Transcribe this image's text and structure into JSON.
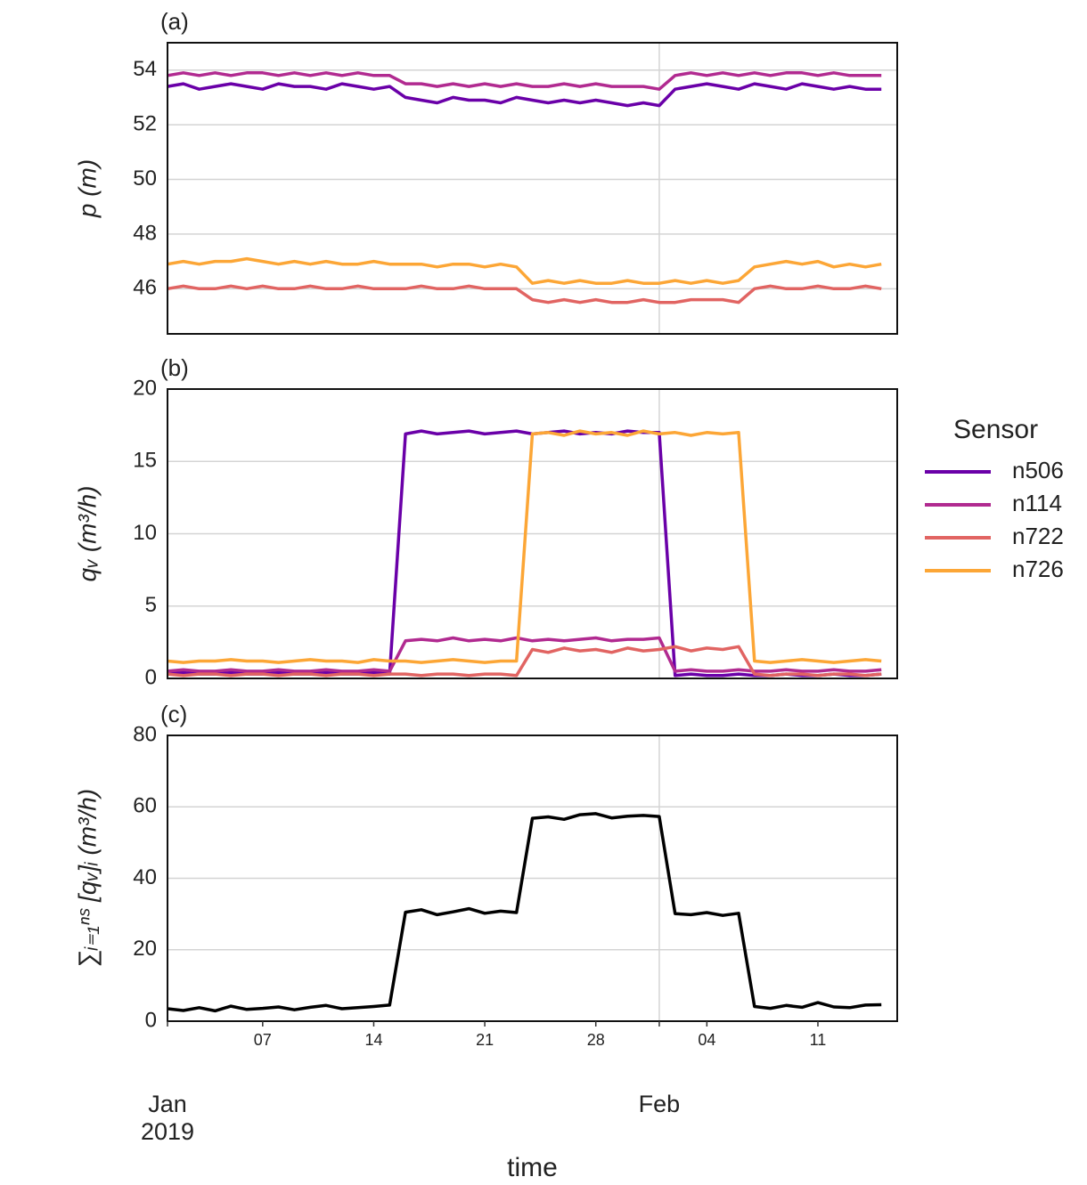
{
  "chart_data": [
    {
      "type": "line",
      "panel_label": "(a)",
      "ylabel": "p   (m)",
      "x": [
        "2019-01-01",
        "2019-01-02",
        "2019-01-03",
        "2019-01-04",
        "2019-01-05",
        "2019-01-06",
        "2019-01-07",
        "2019-01-08",
        "2019-01-09",
        "2019-01-10",
        "2019-01-11",
        "2019-01-12",
        "2019-01-13",
        "2019-01-14",
        "2019-01-15",
        "2019-01-16",
        "2019-01-17",
        "2019-01-18",
        "2019-01-19",
        "2019-01-20",
        "2019-01-21",
        "2019-01-22",
        "2019-01-23",
        "2019-01-24",
        "2019-01-25",
        "2019-01-26",
        "2019-01-27",
        "2019-01-28",
        "2019-01-29",
        "2019-01-30",
        "2019-01-31",
        "2019-02-01",
        "2019-02-02",
        "2019-02-03",
        "2019-02-04",
        "2019-02-05",
        "2019-02-06",
        "2019-02-07",
        "2019-02-08",
        "2019-02-09",
        "2019-02-10",
        "2019-02-11",
        "2019-02-12",
        "2019-02-13",
        "2019-02-14",
        "2019-02-15"
      ],
      "xlim": [
        "2019-01-01",
        "2019-02-16"
      ],
      "ylim": [
        44.35,
        55.0
      ],
      "yticks": [
        46,
        48,
        50,
        52,
        54
      ],
      "grid": true,
      "series": [
        {
          "color": "#6a00a8",
          "values": [
            53.4,
            53.5,
            53.3,
            53.4,
            53.5,
            53.4,
            53.3,
            53.5,
            53.4,
            53.4,
            53.3,
            53.5,
            53.4,
            53.3,
            53.4,
            53.0,
            52.9,
            52.8,
            53.0,
            52.9,
            52.9,
            52.8,
            53.0,
            52.9,
            52.8,
            52.9,
            52.8,
            52.9,
            52.8,
            52.7,
            52.8,
            52.7,
            53.3,
            53.4,
            53.5,
            53.4,
            53.3,
            53.5,
            53.4,
            53.3,
            53.5,
            53.4,
            53.3,
            53.4,
            53.3,
            53.3
          ]
        },
        {
          "color": "#b12a90",
          "values": [
            53.8,
            53.9,
            53.8,
            53.9,
            53.8,
            53.9,
            53.9,
            53.8,
            53.9,
            53.8,
            53.9,
            53.8,
            53.9,
            53.8,
            53.8,
            53.5,
            53.5,
            53.4,
            53.5,
            53.4,
            53.5,
            53.4,
            53.5,
            53.4,
            53.4,
            53.5,
            53.4,
            53.5,
            53.4,
            53.4,
            53.4,
            53.3,
            53.8,
            53.9,
            53.8,
            53.9,
            53.8,
            53.9,
            53.8,
            53.9,
            53.9,
            53.8,
            53.9,
            53.8,
            53.8,
            53.8
          ]
        },
        {
          "color": "#e16462",
          "values": [
            46.0,
            46.1,
            46.0,
            46.0,
            46.1,
            46.0,
            46.1,
            46.0,
            46.0,
            46.1,
            46.0,
            46.0,
            46.1,
            46.0,
            46.0,
            46.0,
            46.1,
            46.0,
            46.0,
            46.1,
            46.0,
            46.0,
            46.0,
            45.6,
            45.5,
            45.6,
            45.5,
            45.6,
            45.5,
            45.5,
            45.6,
            45.5,
            45.5,
            45.6,
            45.6,
            45.6,
            45.5,
            46.0,
            46.1,
            46.0,
            46.0,
            46.1,
            46.0,
            46.0,
            46.1,
            46.0
          ]
        },
        {
          "color": "#fca636",
          "values": [
            46.9,
            47.0,
            46.9,
            47.0,
            47.0,
            47.1,
            47.0,
            46.9,
            47.0,
            46.9,
            47.0,
            46.9,
            46.9,
            47.0,
            46.9,
            46.9,
            46.9,
            46.8,
            46.9,
            46.9,
            46.8,
            46.9,
            46.8,
            46.2,
            46.3,
            46.2,
            46.3,
            46.2,
            46.2,
            46.3,
            46.2,
            46.2,
            46.3,
            46.2,
            46.3,
            46.2,
            46.3,
            46.8,
            46.9,
            47.0,
            46.9,
            47.0,
            46.8,
            46.9,
            46.8,
            46.9
          ]
        }
      ]
    },
    {
      "type": "line",
      "panel_label": "(b)",
      "ylabel": "qᵥ   (m³/h)",
      "legend_title": "Sensor",
      "x": [
        "2019-01-01",
        "2019-01-02",
        "2019-01-03",
        "2019-01-04",
        "2019-01-05",
        "2019-01-06",
        "2019-01-07",
        "2019-01-08",
        "2019-01-09",
        "2019-01-10",
        "2019-01-11",
        "2019-01-12",
        "2019-01-13",
        "2019-01-14",
        "2019-01-15",
        "2019-01-16",
        "2019-01-17",
        "2019-01-18",
        "2019-01-19",
        "2019-01-20",
        "2019-01-21",
        "2019-01-22",
        "2019-01-23",
        "2019-01-24",
        "2019-01-25",
        "2019-01-26",
        "2019-01-27",
        "2019-01-28",
        "2019-01-29",
        "2019-01-30",
        "2019-01-31",
        "2019-02-01",
        "2019-02-02",
        "2019-02-03",
        "2019-02-04",
        "2019-02-05",
        "2019-02-06",
        "2019-02-07",
        "2019-02-08",
        "2019-02-09",
        "2019-02-10",
        "2019-02-11",
        "2019-02-12",
        "2019-02-13",
        "2019-02-14",
        "2019-02-15"
      ],
      "xlim": [
        "2019-01-01",
        "2019-02-16"
      ],
      "ylim": [
        0,
        20
      ],
      "yticks": [
        0,
        5,
        10,
        15,
        20
      ],
      "grid": true,
      "series": [
        {
          "name": "n506",
          "color": "#6a00a8",
          "values": [
            0.3,
            0.4,
            0.3,
            0.3,
            0.4,
            0.3,
            0.3,
            0.4,
            0.3,
            0.3,
            0.4,
            0.3,
            0.3,
            0.4,
            0.3,
            16.9,
            17.1,
            16.9,
            17.0,
            17.1,
            16.9,
            17.0,
            17.1,
            16.9,
            17.0,
            17.1,
            16.9,
            17.0,
            16.9,
            17.1,
            17.0,
            17.0,
            0.2,
            0.3,
            0.2,
            0.2,
            0.3,
            0.2,
            0.2,
            0.3,
            0.2,
            0.2,
            0.3,
            0.2,
            0.2,
            0.3
          ]
        },
        {
          "name": "n114",
          "color": "#b12a90",
          "values": [
            0.5,
            0.6,
            0.5,
            0.5,
            0.6,
            0.5,
            0.5,
            0.6,
            0.5,
            0.5,
            0.6,
            0.5,
            0.5,
            0.6,
            0.5,
            2.6,
            2.7,
            2.6,
            2.8,
            2.6,
            2.7,
            2.6,
            2.8,
            2.6,
            2.7,
            2.6,
            2.7,
            2.8,
            2.6,
            2.7,
            2.7,
            2.8,
            0.5,
            0.6,
            0.5,
            0.5,
            0.6,
            0.5,
            0.5,
            0.6,
            0.5,
            0.5,
            0.6,
            0.5,
            0.5,
            0.6
          ]
        },
        {
          "name": "n722",
          "color": "#e16462",
          "values": [
            0.3,
            0.2,
            0.3,
            0.3,
            0.2,
            0.3,
            0.3,
            0.2,
            0.3,
            0.3,
            0.2,
            0.3,
            0.3,
            0.2,
            0.3,
            0.3,
            0.2,
            0.3,
            0.3,
            0.2,
            0.3,
            0.3,
            0.2,
            2.0,
            1.8,
            2.1,
            1.9,
            2.0,
            1.8,
            2.1,
            1.9,
            2.0,
            2.2,
            1.9,
            2.1,
            2.0,
            2.2,
            0.3,
            0.2,
            0.3,
            0.3,
            0.2,
            0.3,
            0.3,
            0.2,
            0.3
          ]
        },
        {
          "name": "n726",
          "color": "#fca636",
          "values": [
            1.2,
            1.1,
            1.2,
            1.2,
            1.3,
            1.2,
            1.2,
            1.1,
            1.2,
            1.3,
            1.2,
            1.2,
            1.1,
            1.3,
            1.2,
            1.2,
            1.1,
            1.2,
            1.3,
            1.2,
            1.1,
            1.2,
            1.2,
            16.9,
            17.0,
            16.8,
            17.1,
            16.9,
            17.0,
            16.8,
            17.1,
            16.9,
            17.0,
            16.8,
            17.0,
            16.9,
            17.0,
            1.2,
            1.1,
            1.2,
            1.3,
            1.2,
            1.1,
            1.2,
            1.3,
            1.2
          ]
        }
      ]
    },
    {
      "type": "line",
      "panel_label": "(c)",
      "ylabel": "∑ᵢ₌₁ⁿˢ [qᵥ]ᵢ   (m³/h)",
      "xlabel": "time",
      "x": [
        "2019-01-01",
        "2019-01-02",
        "2019-01-03",
        "2019-01-04",
        "2019-01-05",
        "2019-01-06",
        "2019-01-07",
        "2019-01-08",
        "2019-01-09",
        "2019-01-10",
        "2019-01-11",
        "2019-01-12",
        "2019-01-13",
        "2019-01-14",
        "2019-01-15",
        "2019-01-16",
        "2019-01-17",
        "2019-01-18",
        "2019-01-19",
        "2019-01-20",
        "2019-01-21",
        "2019-01-22",
        "2019-01-23",
        "2019-01-24",
        "2019-01-25",
        "2019-01-26",
        "2019-01-27",
        "2019-01-28",
        "2019-01-29",
        "2019-01-30",
        "2019-01-31",
        "2019-02-01",
        "2019-02-02",
        "2019-02-03",
        "2019-02-04",
        "2019-02-05",
        "2019-02-06",
        "2019-02-07",
        "2019-02-08",
        "2019-02-09",
        "2019-02-10",
        "2019-02-11",
        "2019-02-12",
        "2019-02-13",
        "2019-02-14",
        "2019-02-15"
      ],
      "xlim": [
        "2019-01-01",
        "2019-02-16"
      ],
      "ylim": [
        0,
        80
      ],
      "yticks": [
        0,
        20,
        40,
        60,
        80
      ],
      "grid": true,
      "xticks": [
        {
          "value": "2019-01-07",
          "label": "07"
        },
        {
          "value": "2019-01-14",
          "label": "14"
        },
        {
          "value": "2019-01-21",
          "label": "21"
        },
        {
          "value": "2019-01-28",
          "label": "28"
        },
        {
          "value": "2019-02-04",
          "label": "04"
        },
        {
          "value": "2019-02-11",
          "label": "11"
        }
      ],
      "xticks_major": [
        {
          "value": "2019-01-01",
          "label": "Jan 2019"
        },
        {
          "value": "2019-02-01",
          "label": "Feb"
        }
      ],
      "series": [
        {
          "color": "#000000",
          "values": [
            3.5,
            3.0,
            3.8,
            2.9,
            4.2,
            3.3,
            3.6,
            4.0,
            3.2,
            3.9,
            4.4,
            3.5,
            3.8,
            4.1,
            4.5,
            30.5,
            31.2,
            29.8,
            30.6,
            31.5,
            30.2,
            30.8,
            30.4,
            56.8,
            57.2,
            56.5,
            57.8,
            58.1,
            56.9,
            57.4,
            57.6,
            57.3,
            30.1,
            29.8,
            30.4,
            29.6,
            30.2,
            4.1,
            3.6,
            4.4,
            3.9,
            5.2,
            4.0,
            3.8,
            4.5,
            4.6
          ]
        }
      ]
    }
  ]
}
